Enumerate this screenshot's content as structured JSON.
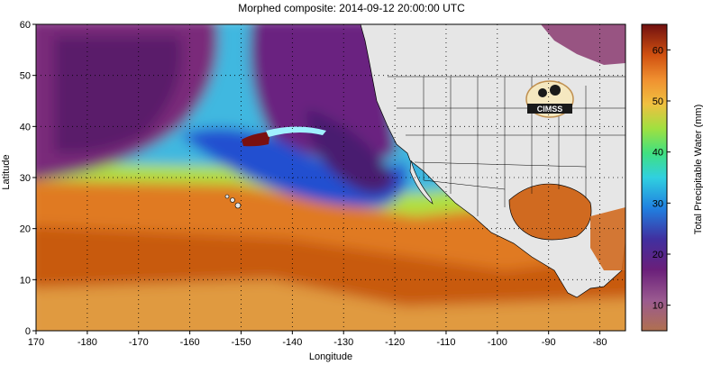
{
  "title": "Morphed composite: 2014-09-12 20:00:00 UTC",
  "xlabel": "Longitude",
  "ylabel": "Latitude",
  "colorbar": {
    "label": "Total Precipitable Water (mm)",
    "ticks": [
      10,
      20,
      30,
      40,
      50,
      60
    ],
    "range": [
      5,
      65
    ]
  },
  "map": {
    "lon_ticks": [
      170,
      -180,
      -170,
      -160,
      -150,
      -140,
      -130,
      -120,
      -110,
      -100,
      -90,
      -80
    ],
    "lat_ticks": [
      0,
      10,
      20,
      30,
      40,
      50,
      60
    ],
    "lon_range": [
      170,
      285
    ],
    "lat_range": [
      0,
      60
    ],
    "logo_text": "CIMSS",
    "colors": {
      "land": "#e6e6e6",
      "tropical_moisture": "#d2691e",
      "dry_air": "#7a2a7a",
      "moderate": "#30b0e0"
    }
  }
}
